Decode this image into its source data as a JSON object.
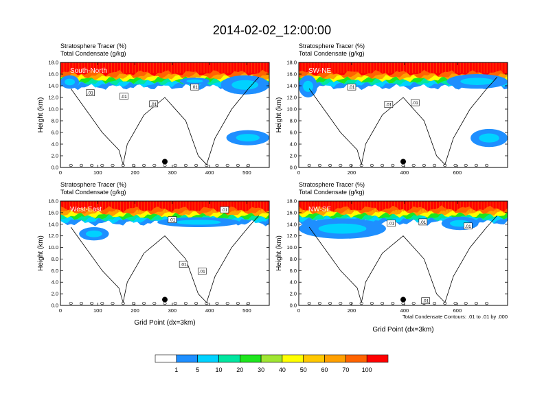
{
  "figure": {
    "title": "2014-02-02_12:00:00",
    "footnote": "Total Condensate Contours: .01 to .01 by .000"
  },
  "chart_data": {
    "type": "heatmap",
    "shared": {
      "field_label": "Stratosphere Tracer   (%)",
      "contour_label": "Total Condensate   (g/kg)",
      "ylabel": "Height (km)",
      "xlabel": "Grid Point (dx=3km)",
      "ylim": [
        0,
        18
      ],
      "ytick_labels": [
        "0.0",
        "2.0",
        "4.0",
        "6.0",
        "8.0",
        "10.0",
        "12.0",
        "14.0",
        "16.0",
        "18.0"
      ],
      "contour_value_label": ".01"
    },
    "panels": [
      {
        "name": "South-North",
        "xlim": [
          0,
          560
        ],
        "xticks": [
          0,
          100,
          200,
          300,
          400,
          500
        ],
        "xtick_labels": [
          "0",
          "100",
          "200",
          "300",
          "400",
          "500"
        ],
        "show_xlabel": false,
        "marker": {
          "x": 280,
          "y": 1.0
        },
        "tracer_base_km": 14.3,
        "tracer_top_km": 18.0,
        "low_patches": [
          {
            "x0": 0,
            "x1": 50,
            "y0": 13.5,
            "y1": 15.8
          },
          {
            "x0": 320,
            "x1": 400,
            "y0": 14.2,
            "y1": 15.4
          },
          {
            "x0": 430,
            "x1": 560,
            "y0": 12.5,
            "y1": 15.8
          },
          {
            "x0": 445,
            "x1": 560,
            "y0": 3.8,
            "y1": 6.4
          }
        ],
        "contour_labels": [
          {
            "x": 80,
            "y": 12.8
          },
          {
            "x": 170,
            "y": 12.2
          },
          {
            "x": 250,
            "y": 10.9
          },
          {
            "x": 360,
            "y": 13.8
          }
        ]
      },
      {
        "name": "SW-NE",
        "xlim": [
          0,
          790
        ],
        "xticks": [
          0,
          200,
          400,
          600
        ],
        "xtick_labels": [
          "0",
          "200",
          "400",
          "600"
        ],
        "show_xlabel": false,
        "marker": {
          "x": 395,
          "y": 1.0
        },
        "tracer_base_km": 14.3,
        "tracer_top_km": 18.0,
        "low_patches": [
          {
            "x0": 0,
            "x1": 70,
            "y0": 12.0,
            "y1": 15.8
          },
          {
            "x0": 560,
            "x1": 790,
            "y0": 13.5,
            "y1": 16.0
          },
          {
            "x0": 650,
            "x1": 790,
            "y0": 3.5,
            "y1": 6.6
          }
        ],
        "contour_labels": [
          {
            "x": 200,
            "y": 13.8
          },
          {
            "x": 340,
            "y": 10.8
          },
          {
            "x": 440,
            "y": 11.1
          }
        ]
      },
      {
        "name": "West-East",
        "xlim": [
          0,
          560
        ],
        "xticks": [
          0,
          100,
          200,
          300,
          400,
          500
        ],
        "xtick_labels": [
          "0",
          "100",
          "200",
          "300",
          "400",
          "500"
        ],
        "show_xlabel": true,
        "marker": {
          "x": 280,
          "y": 1.0
        },
        "tracer_base_km": 14.7,
        "tracer_top_km": 18.0,
        "low_patches": [
          {
            "x0": 50,
            "x1": 130,
            "y0": 11.2,
            "y1": 13.5
          },
          {
            "x0": 260,
            "x1": 480,
            "y0": 13.5,
            "y1": 15.2
          }
        ],
        "contour_labels": [
          {
            "x": 300,
            "y": 14.8
          },
          {
            "x": 440,
            "y": 16.5
          },
          {
            "x": 330,
            "y": 7.1
          },
          {
            "x": 380,
            "y": 5.9
          }
        ]
      },
      {
        "name": "NW-SE",
        "xlim": [
          0,
          790
        ],
        "xticks": [
          0,
          200,
          400,
          600
        ],
        "xtick_labels": [
          "0",
          "200",
          "400",
          "600"
        ],
        "show_xlabel": true,
        "marker": {
          "x": 395,
          "y": 1.0
        },
        "tracer_base_km": 14.8,
        "tracer_top_km": 18.0,
        "low_patches": [
          {
            "x0": 0,
            "x1": 330,
            "y0": 11.5,
            "y1": 15.0
          },
          {
            "x0": 540,
            "x1": 680,
            "y0": 13.0,
            "y1": 15.3
          }
        ],
        "contour_labels": [
          {
            "x": 350,
            "y": 14.2
          },
          {
            "x": 470,
            "y": 14.4
          },
          {
            "x": 640,
            "y": 13.7
          },
          {
            "x": 480,
            "y": 0.8
          }
        ]
      }
    ],
    "colorbar": {
      "levels": [
        "1",
        "5",
        "10",
        "20",
        "30",
        "40",
        "50",
        "60",
        "70",
        "100"
      ],
      "colors": [
        "#ffffff",
        "#1e8fff",
        "#00d2ff",
        "#00e6a0",
        "#1ee61e",
        "#a0e632",
        "#ffff00",
        "#ffc800",
        "#ffa000",
        "#ff6400",
        "#ff0000"
      ]
    }
  }
}
